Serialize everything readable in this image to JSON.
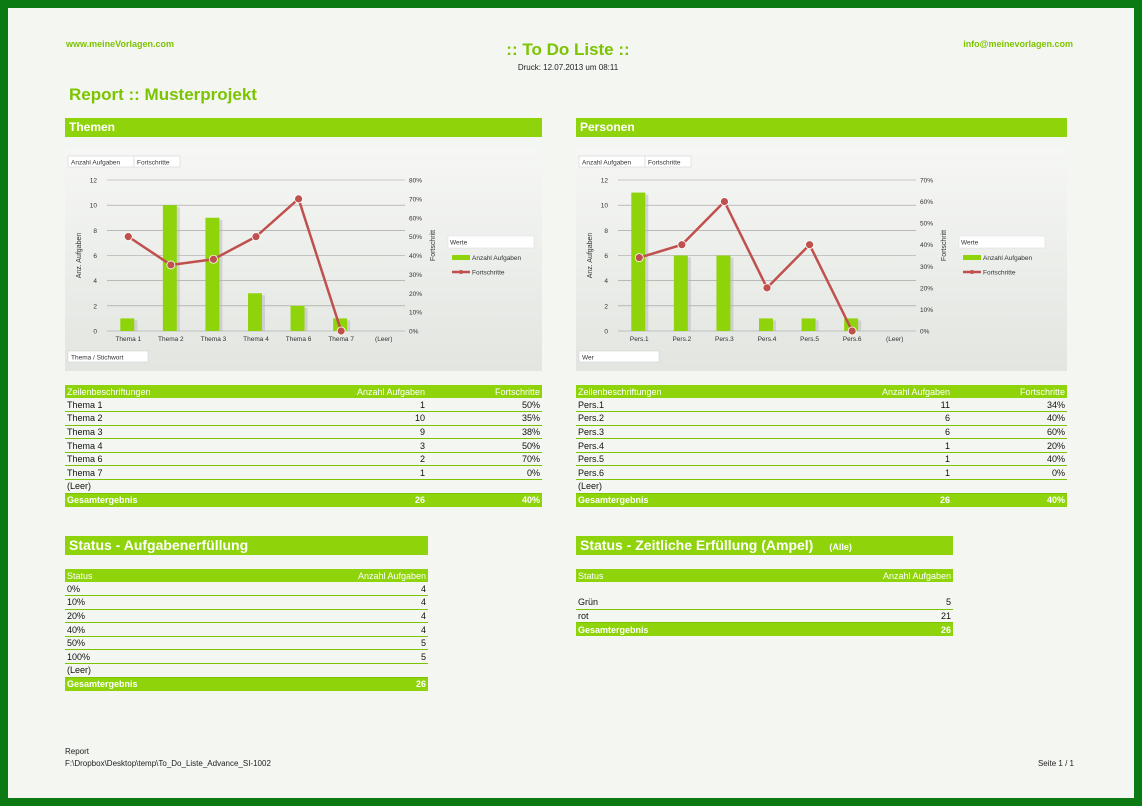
{
  "header": {
    "website": "www.meineVorlagen.com",
    "title": ":: To Do Liste ::",
    "print_date": "Druck: 12.07.2013 um 08:11",
    "email": "info@meinevorlagen.com"
  },
  "report_title": "Report :: Musterprojekt",
  "themen": {
    "heading": "Themen",
    "chart_tags": [
      "Anzahl Aufgaben",
      "Fortschritte"
    ],
    "filter_label": "Thema / Stichwort",
    "legend_title": "Werte",
    "table": {
      "headers": [
        "Zeilenbeschriftungen",
        "Anzahl Aufgaben",
        "Fortschritte"
      ],
      "rows": [
        [
          "Thema 1",
          "1",
          "50%"
        ],
        [
          "Thema 2",
          "10",
          "35%"
        ],
        [
          "Thema 3",
          "9",
          "38%"
        ],
        [
          "Thema 4",
          "3",
          "50%"
        ],
        [
          "Thema 6",
          "2",
          "70%"
        ],
        [
          "Thema 7",
          "1",
          "0%"
        ],
        [
          "(Leer)",
          "",
          ""
        ]
      ],
      "total": [
        "Gesamtergebnis",
        "26",
        "40%"
      ]
    }
  },
  "personen": {
    "heading": "Personen",
    "chart_tags": [
      "Anzahl Aufgaben",
      "Fortschritte"
    ],
    "filter_label": "Wer",
    "legend_title": "Werte",
    "table": {
      "headers": [
        "Zeilenbeschriftungen",
        "Anzahl Aufgaben",
        "Fortschritte"
      ],
      "rows": [
        [
          "Pers.1",
          "11",
          "34%"
        ],
        [
          "Pers.2",
          "6",
          "40%"
        ],
        [
          "Pers.3",
          "6",
          "60%"
        ],
        [
          "Pers.4",
          "1",
          "20%"
        ],
        [
          "Pers.5",
          "1",
          "40%"
        ],
        [
          "Pers.6",
          "1",
          "0%"
        ],
        [
          "(Leer)",
          "",
          ""
        ]
      ],
      "total": [
        "Gesamtergebnis",
        "26",
        "40%"
      ]
    }
  },
  "status_aufgaben": {
    "heading": "Status - Aufgabenerfüllung",
    "headers": [
      "Status",
      "Anzahl Aufgaben"
    ],
    "rows": [
      [
        "0%",
        "4"
      ],
      [
        "10%",
        "4"
      ],
      [
        "20%",
        "4"
      ],
      [
        "40%",
        "4"
      ],
      [
        "50%",
        "5"
      ],
      [
        "100%",
        "5"
      ],
      [
        "(Leer)",
        ""
      ]
    ],
    "total": [
      "Gesamtergebnis",
      "26"
    ]
  },
  "status_zeit": {
    "heading": "Status - Zeitliche Erfüllung (Ampel)",
    "filter": "(Alle)",
    "headers": [
      "Status",
      "Anzahl Aufgaben"
    ],
    "rows": [
      [
        "",
        ""
      ],
      [
        "Grün",
        "5"
      ],
      [
        "rot",
        "21"
      ]
    ],
    "total": [
      "Gesamtergebnis",
      "26"
    ]
  },
  "footer": {
    "label": "Report",
    "path": "F:\\Dropbox\\Desktop\\temp\\To_Do_Liste_Advance_SI-1002",
    "page": "Seite 1 / 1"
  },
  "chart_data": [
    {
      "type": "bar",
      "categories": [
        "Thema 1",
        "Thema 2",
        "Thema 3",
        "Thema 4",
        "Thema 6",
        "Thema 7",
        "(Leer)"
      ],
      "series": [
        {
          "name": "Anzahl Aufgaben",
          "type": "bar",
          "axis": "left",
          "values": [
            1,
            10,
            9,
            3,
            2,
            1,
            null
          ],
          "color": "#8fd40a"
        },
        {
          "name": "Fortschritte",
          "type": "line",
          "axis": "right",
          "values": [
            50,
            35,
            38,
            50,
            70,
            0,
            null
          ],
          "color": "#c0504d"
        }
      ],
      "ylabel": "Anz. Aufgaben",
      "y2label": "Fortschritt",
      "ylim": [
        0,
        12
      ],
      "y2lim": [
        0,
        80
      ],
      "yticks": [
        "0",
        "2",
        "4",
        "6",
        "8",
        "10",
        "12"
      ],
      "y2ticks": [
        "0%",
        "10%",
        "20%",
        "30%",
        "40%",
        "50%",
        "60%",
        "70%",
        "80%"
      ],
      "legend": [
        "Anzahl Aufgaben",
        "Fortschritte"
      ],
      "legend_position": "right",
      "grid": true
    },
    {
      "type": "bar",
      "categories": [
        "Pers.1",
        "Pers.2",
        "Pers.3",
        "Pers.4",
        "Pers.5",
        "Pers.6",
        "(Leer)"
      ],
      "series": [
        {
          "name": "Anzahl Aufgaben",
          "type": "bar",
          "axis": "left",
          "values": [
            11,
            6,
            6,
            1,
            1,
            1,
            null
          ],
          "color": "#8fd40a"
        },
        {
          "name": "Fortschritte",
          "type": "line",
          "axis": "right",
          "values": [
            34,
            40,
            60,
            20,
            40,
            0,
            null
          ],
          "color": "#c0504d"
        }
      ],
      "ylabel": "Anz. Aufgaben",
      "y2label": "Fortschritt",
      "ylim": [
        0,
        12
      ],
      "y2lim": [
        0,
        70
      ],
      "yticks": [
        "0",
        "2",
        "4",
        "6",
        "8",
        "10",
        "12"
      ],
      "y2ticks": [
        "0%",
        "10%",
        "20%",
        "30%",
        "40%",
        "50%",
        "60%",
        "70%"
      ],
      "legend": [
        "Anzahl Aufgaben",
        "Fortschritte"
      ],
      "legend_position": "right",
      "grid": true
    }
  ]
}
